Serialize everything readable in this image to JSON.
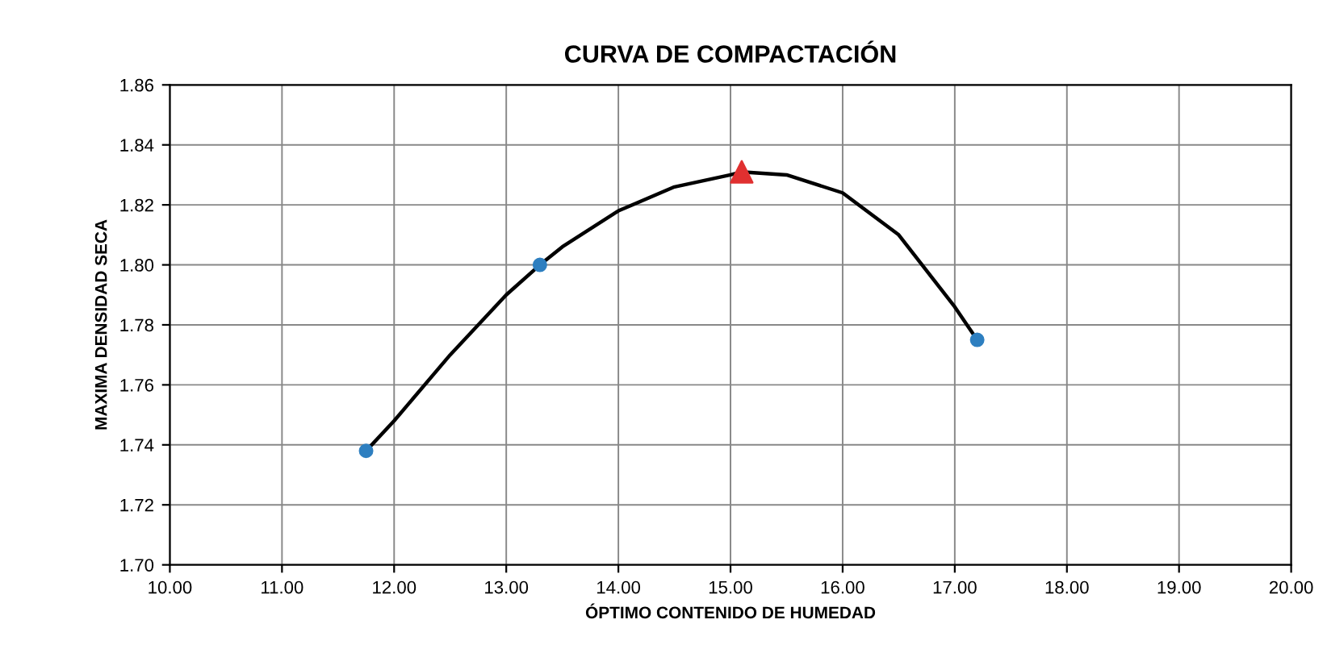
{
  "chart_data": {
    "type": "scatter",
    "title": "CURVA DE COMPACTACIÓN",
    "xlabel": "ÓPTIMO CONTENIDO DE HUMEDAD",
    "ylabel": "MAXIMA DENSIDAD SECA",
    "xlim": [
      10,
      20
    ],
    "xticks": [
      {
        "value": 10,
        "label": "10.00"
      },
      {
        "value": 11,
        "label": "11.00"
      },
      {
        "value": 12,
        "label": "12.00"
      },
      {
        "value": 13,
        "label": "13.00"
      },
      {
        "value": 14,
        "label": "14.00"
      },
      {
        "value": 15,
        "label": "15.00"
      },
      {
        "value": 16,
        "label": "16.00"
      },
      {
        "value": 17,
        "label": "17.00"
      },
      {
        "value": 18,
        "label": "18.00"
      },
      {
        "value": 19,
        "label": "19.00"
      },
      {
        "value": 20,
        "label": "20.00"
      }
    ],
    "ylim": [
      1.7,
      1.86
    ],
    "yticks": [
      {
        "value": 1.7,
        "label": "1.70"
      },
      {
        "value": 1.72,
        "label": "1.72"
      },
      {
        "value": 1.74,
        "label": "1.74"
      },
      {
        "value": 1.76,
        "label": "1.76"
      },
      {
        "value": 1.78,
        "label": "1.78"
      },
      {
        "value": 1.8,
        "label": "1.80"
      },
      {
        "value": 1.82,
        "label": "1.82"
      },
      {
        "value": 1.84,
        "label": "1.84"
      },
      {
        "value": 1.86,
        "label": "1.86"
      }
    ],
    "grid": true,
    "series": [
      {
        "type": "line",
        "color": "#000000",
        "marker": "none",
        "line_style": "solid",
        "x": [
          11.75,
          12.0,
          12.5,
          13.0,
          13.3,
          13.5,
          14.0,
          14.5,
          15.0,
          15.1,
          15.5,
          16.0,
          16.5,
          17.0,
          17.2
        ],
        "values": [
          1.738,
          1.748,
          1.77,
          1.79,
          1.8,
          1.806,
          1.818,
          1.826,
          1.83,
          1.831,
          1.83,
          1.824,
          1.81,
          1.786,
          1.775
        ]
      },
      {
        "color": "#2e7fc0",
        "marker": "circle",
        "x": [
          11.75,
          13.3,
          17.2
        ],
        "values": [
          1.738,
          1.8,
          1.775
        ]
      },
      {
        "color": "#e03030",
        "marker": "triangle",
        "x": [
          15.1
        ],
        "values": [
          1.831
        ]
      }
    ]
  }
}
